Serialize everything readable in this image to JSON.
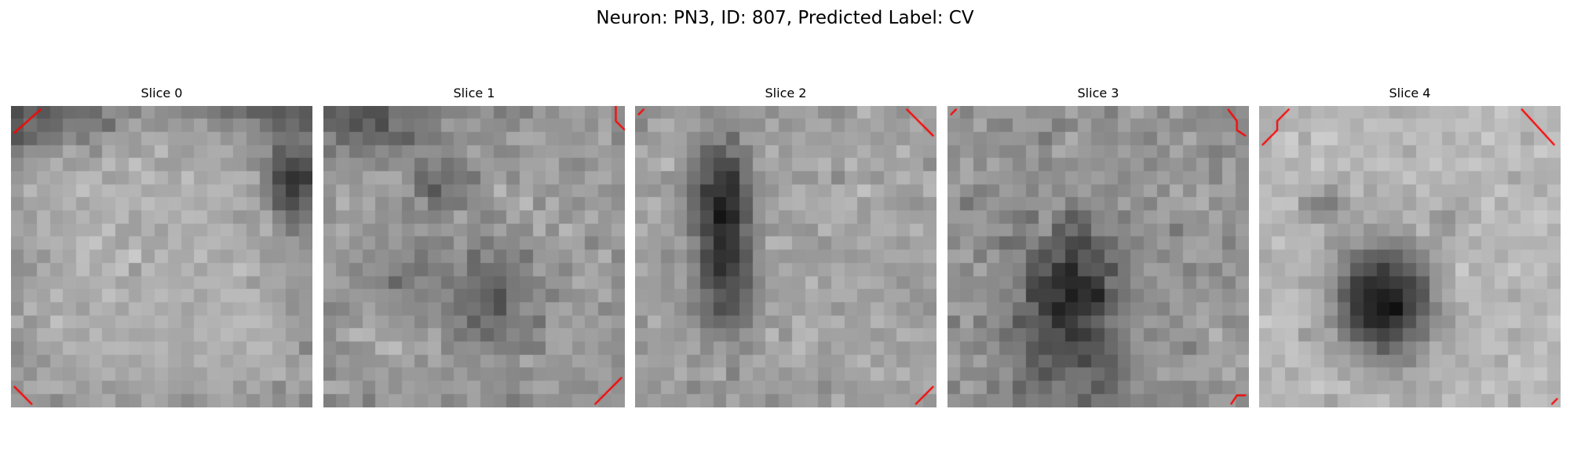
{
  "figure": {
    "title": "Neuron: PN3, ID: 807, Predicted Label: CV",
    "contour_color": "#ff0000"
  },
  "panels": [
    {
      "title": "Slice 0",
      "brightness": "bright",
      "dark_blob": "faint diffuse; small dark patch near top-right edge"
    },
    {
      "title": "Slice 1",
      "brightness": "medium",
      "dark_blob": "faint diffuse dark patches upper-left and lower-center"
    },
    {
      "title": "Slice 2",
      "brightness": "medium",
      "dark_blob": "dark vertical patch left of center"
    },
    {
      "title": "Slice 3",
      "brightness": "medium",
      "dark_blob": "dark diffuse patch center-lower"
    },
    {
      "title": "Slice 4",
      "brightness": "bright",
      "dark_blob": "dark compact blob center-lower"
    }
  ]
}
